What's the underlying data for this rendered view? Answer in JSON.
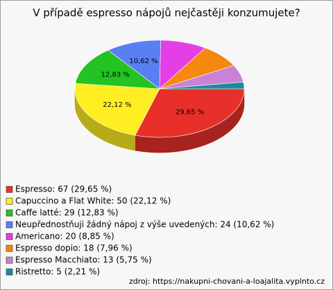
{
  "chart_data": {
    "type": "pie",
    "title": "V případě espresso nápojů nejčastěji konzumujete?",
    "categories": [
      "Espresso: 67 (29,65 %)",
      "Capuccino a Flat White: 50 (22,12 %)",
      "Caffe latté: 29 (12,83 %)",
      "Neupřednostňuji žádný nápoj z výše uvedených: 24 (10,62 %)",
      "Americano: 20 (8,85 %)",
      "Espresso dopio: 18 (7,96 %)",
      "Espresso Macchiato: 13 (5,75 %)",
      "Ristretto: 5 (2,21 %)"
    ],
    "values": [
      29.65,
      22.12,
      12.83,
      10.62,
      8.85,
      7.96,
      5.75,
      2.21
    ],
    "value_labels": [
      "29,65 %",
      "22,12 %",
      "12,83 %",
      "10,62 %",
      null,
      null,
      null,
      null
    ],
    "colors": [
      "#e8302a",
      "#ffee22",
      "#22c322",
      "#5b7ff2",
      "#e43ee6",
      "#f5880f",
      "#c982d4",
      "#1b8b9b"
    ],
    "source": "zdroj: https://nakupni-chovani-a-loajalita.vyplnto.cz"
  }
}
